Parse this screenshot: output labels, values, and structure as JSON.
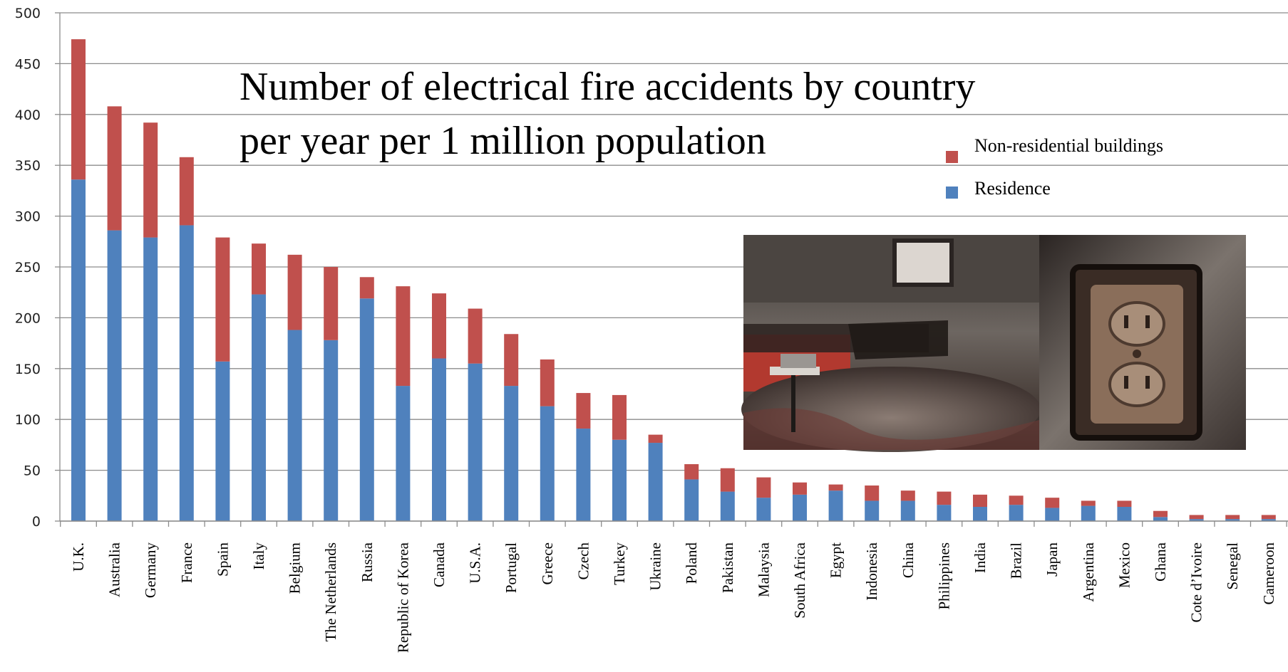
{
  "chart_data": {
    "type": "bar",
    "stacked": true,
    "title_lines": [
      "Number of electrical fire accidents by country",
      "per year per 1 million population"
    ],
    "xlabel": "",
    "ylabel": "",
    "ylim": [
      0,
      500
    ],
    "yticks": [
      0,
      50,
      100,
      150,
      200,
      250,
      300,
      350,
      400,
      450,
      500
    ],
    "grid": true,
    "legend_position": "upper-right",
    "categories": [
      "U.K.",
      "Australia",
      "Germany",
      "France",
      "Spain",
      "Italy",
      "Belgium",
      "The Netherlands",
      "Russia",
      "Republic of Korea",
      "Canada",
      "U.S.A.",
      "Portugal",
      "Greece",
      "Czech",
      "Turkey",
      "Ukraine",
      "Poland",
      "Pakistan",
      "Malaysia",
      "South Africa",
      "Egypt",
      "Indonesia",
      "China",
      "Philippines",
      "India",
      "Brazil",
      "Japan",
      "Argentina",
      "Mexico",
      "Ghana",
      "Cote d’Ivoire",
      "Senegal",
      "Cameroon"
    ],
    "series": [
      {
        "name": "Residence",
        "color": "#4f81bd",
        "values": [
          336,
          286,
          279,
          291,
          157,
          223,
          188,
          178,
          219,
          133,
          160,
          155,
          133,
          113,
          91,
          80,
          77,
          41,
          29,
          23,
          26,
          30,
          20,
          20,
          16,
          14,
          16,
          13,
          15,
          14,
          4,
          2,
          2,
          2
        ]
      },
      {
        "name": "Non-residential buildings",
        "color": "#c0504d",
        "values": [
          138,
          122,
          113,
          67,
          122,
          50,
          74,
          72,
          21,
          98,
          64,
          54,
          51,
          46,
          35,
          44,
          8,
          15,
          23,
          20,
          12,
          6,
          15,
          10,
          13,
          12,
          9,
          10,
          5,
          6,
          6,
          4,
          4,
          4
        ]
      }
    ]
  },
  "photo": {
    "left_panel": "burned-room-photo",
    "right_panel": "burned-outlet-photo"
  }
}
